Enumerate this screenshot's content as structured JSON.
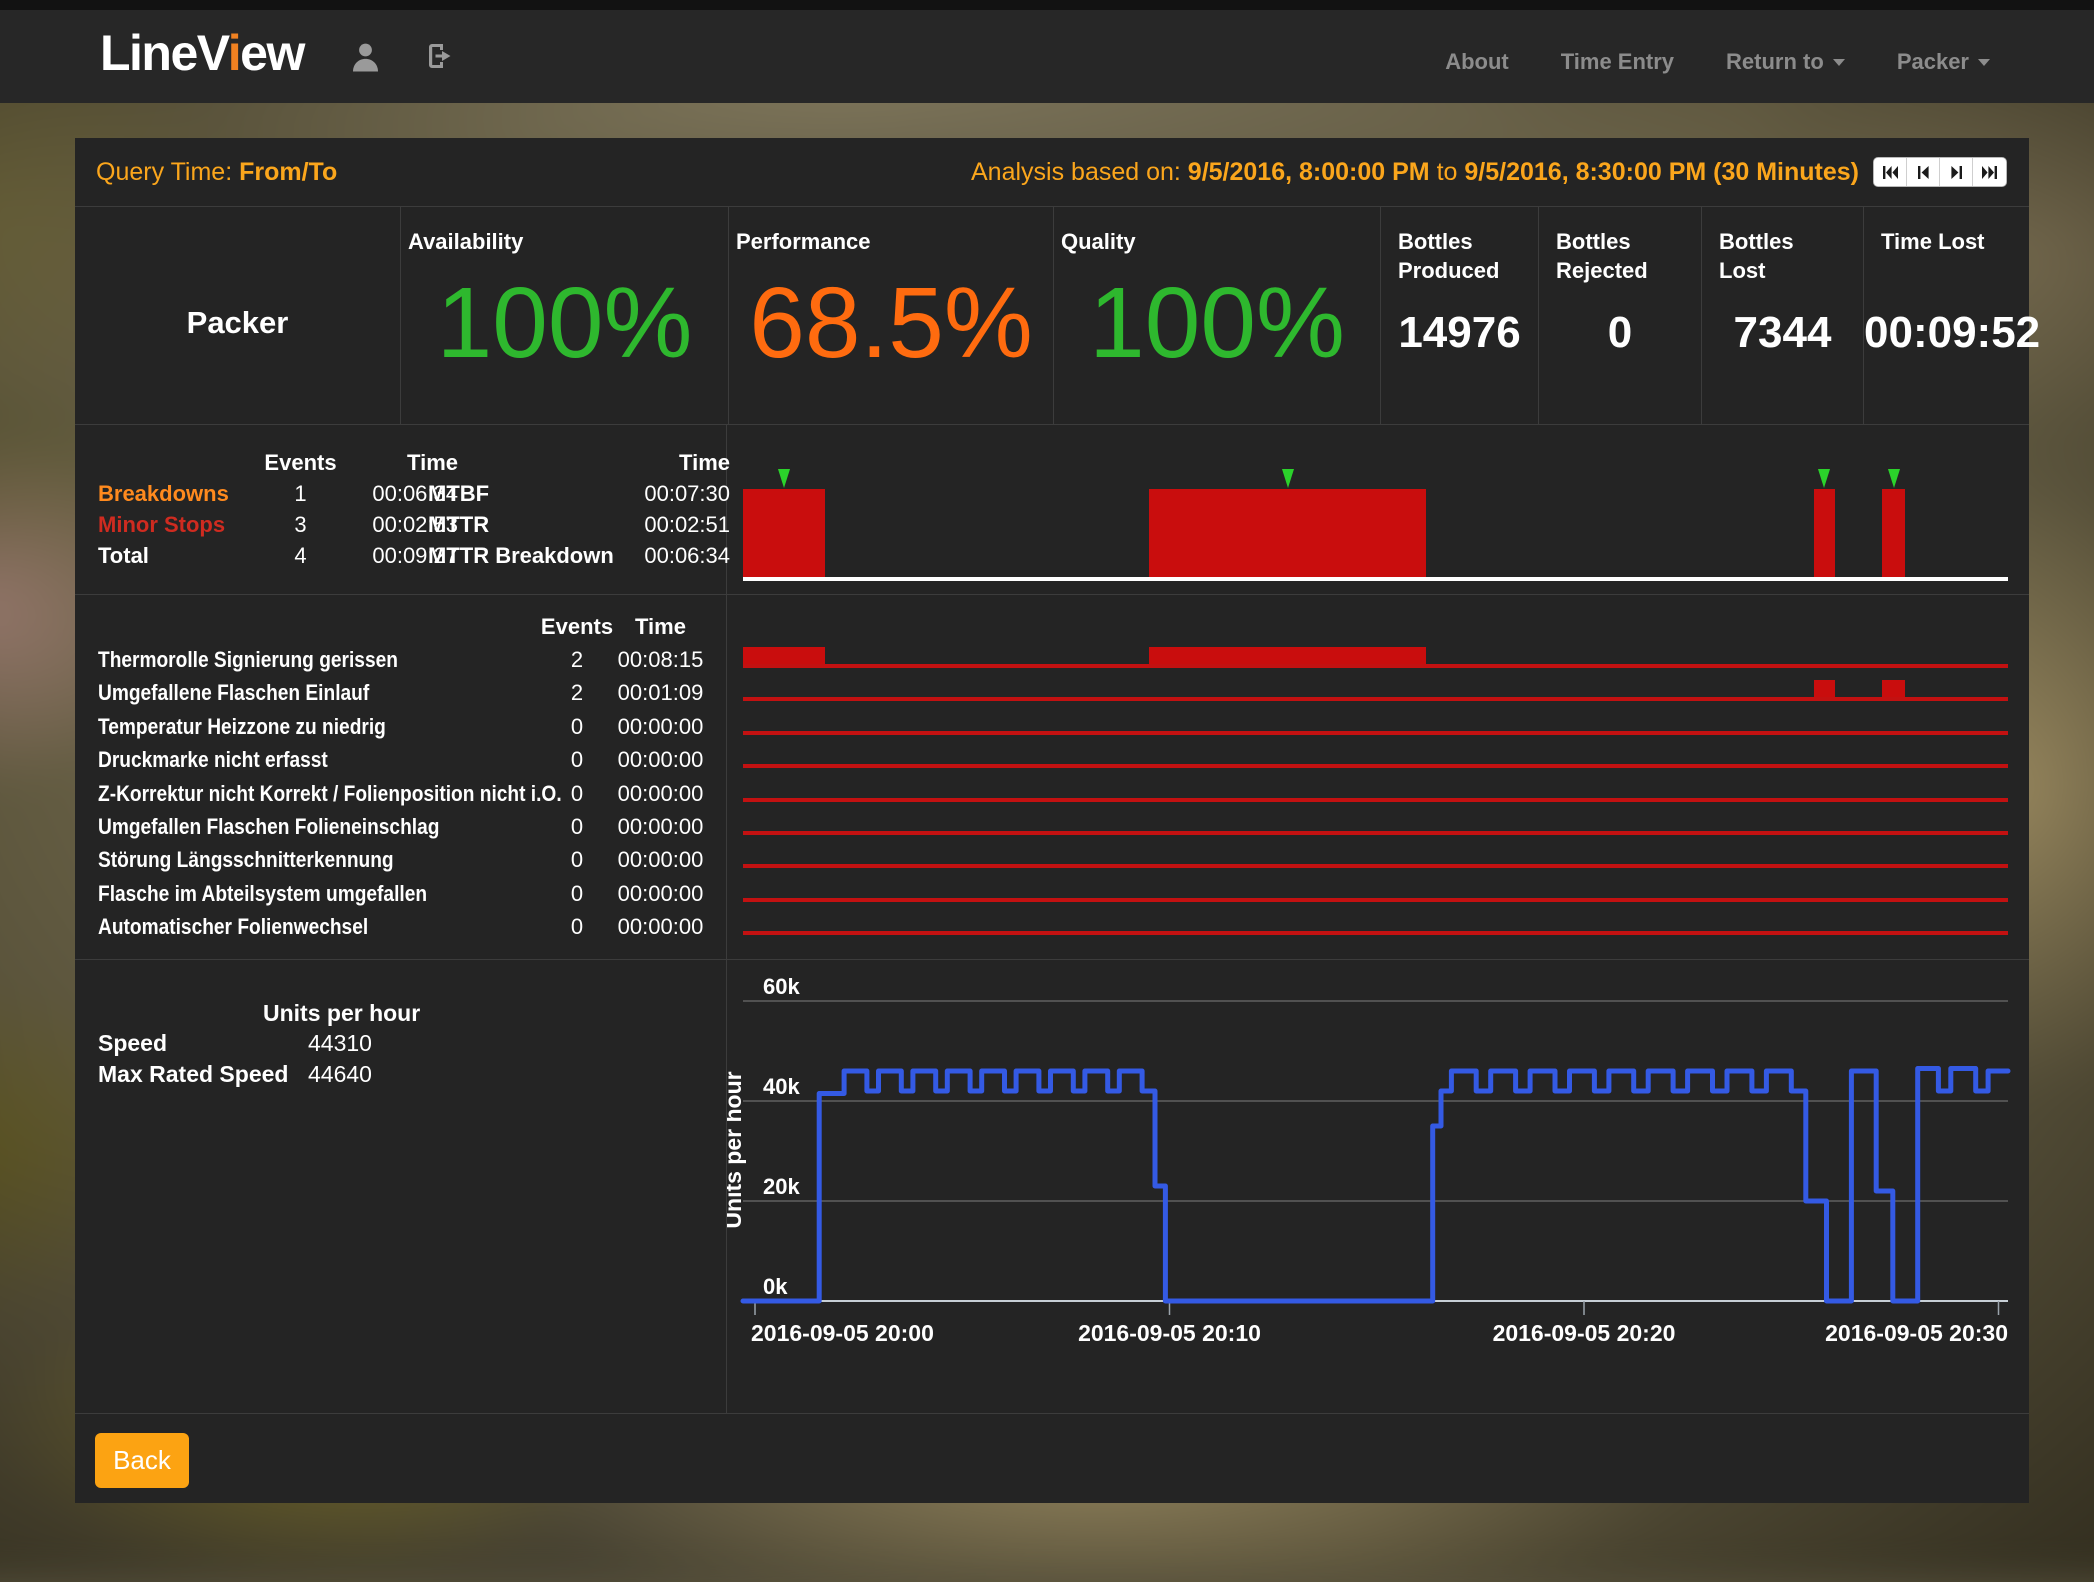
{
  "navbar": {
    "logo": {
      "part1": "LineV",
      "accent": "i",
      "part2": "ew"
    },
    "links": [
      "About",
      "Time Entry",
      "Return to",
      "Packer"
    ]
  },
  "query_header": {
    "label": "Query Time: ",
    "value": "From/To",
    "analysis_prefix": "Analysis based on: ",
    "from": "9/5/2016, 8:00:00 PM",
    "to_word": " to ",
    "to": "9/5/2016, 8:30:00 PM",
    "duration": " (30 Minutes)",
    "vcr_icons": [
      "skip-to-start-icon",
      "step-backward-icon",
      "step-forward-icon",
      "skip-to-end-icon"
    ]
  },
  "kpi": {
    "machine": "Packer",
    "cells": [
      {
        "label": "Availability",
        "value": "100%",
        "color": "#2eb82e"
      },
      {
        "label": "Performance",
        "value": "68.5%",
        "color": "#ff6b0f"
      },
      {
        "label": "Quality",
        "value": "100%",
        "color": "#2eb82e"
      },
      {
        "label": "Bottles Produced",
        "value": "14976"
      },
      {
        "label": "Bottles Rejected",
        "value": "0"
      },
      {
        "label": "Bottles Lost",
        "value": "7344"
      },
      {
        "label": "Time Lost",
        "value": "00:09:52"
      }
    ]
  },
  "breakdown_stats": {
    "events_header": "Events",
    "time_header": "Time",
    "rows": [
      {
        "label": "Breakdowns",
        "events": "1",
        "time": "00:06:34",
        "color": "#ff8a1e"
      },
      {
        "label": "Minor Stops",
        "events": "3",
        "time": "00:02:53",
        "color": "#cf2b20"
      },
      {
        "label": "Total",
        "events": "4",
        "time": "00:09:27",
        "color": "#ffffff"
      }
    ],
    "mttr_table": {
      "time_header": "Time",
      "rows": [
        {
          "label": "MTBF",
          "time": "00:07:30"
        },
        {
          "label": "MTTR",
          "time": "00:02:51"
        },
        {
          "label": "MTTR Breakdown",
          "time": "00:06:34"
        }
      ]
    }
  },
  "events_table": {
    "events_header": "Events",
    "time_header": "Time",
    "rows": [
      {
        "name": "Thermorolle Signierung gerissen",
        "events": "2",
        "time": "00:08:15"
      },
      {
        "name": "Umgefallene Flaschen Einlauf",
        "events": "2",
        "time": "00:01:09"
      },
      {
        "name": "Temperatur Heizzone zu niedrig",
        "events": "0",
        "time": "00:00:00"
      },
      {
        "name": "Druckmarke nicht erfasst",
        "events": "0",
        "time": "00:00:00"
      },
      {
        "name": "Z-Korrektur nicht Korrekt / Folienposition nicht i.O.",
        "events": "0",
        "time": "00:00:00"
      },
      {
        "name": "Umgefallen Flaschen Folieneinschlag",
        "events": "0",
        "time": "00:00:00"
      },
      {
        "name": "Störung Längsschnitterkennung",
        "events": "0",
        "time": "00:00:00"
      },
      {
        "name": "Flasche im Abteilsystem umgefallen",
        "events": "0",
        "time": "00:00:00"
      },
      {
        "name": "Automatischer Folienwechsel",
        "events": "0",
        "time": "00:00:00"
      }
    ]
  },
  "speed": {
    "title": "Units per hour",
    "rows": [
      {
        "label": "Speed",
        "value": "44310"
      },
      {
        "label": "Max Rated Speed",
        "value": "44640"
      }
    ]
  },
  "footer": {
    "back_label": "Back"
  },
  "colors": {
    "accent_orange": "#fba61c",
    "bar_red": "#c90d0d",
    "line_red": "#c31111",
    "marker_green": "#2bd22b",
    "chart_blue": "#345ae4",
    "grid_gray": "#7e7e7e",
    "axis_light": "#c7cfd6"
  },
  "chart_data": [
    {
      "type": "bar",
      "name": "breakdown_timeline",
      "note": "machine stop gantt, minutes after 2016-09-05 20:00",
      "bars": [
        {
          "start": -0.3,
          "end": 1.7
        },
        {
          "start": 9.5,
          "end": 16.2
        },
        {
          "start": 25.55,
          "end": 26.05
        },
        {
          "start": 27.2,
          "end": 27.75
        }
      ],
      "markers": [
        0.7,
        12.85,
        25.8,
        27.47
      ]
    },
    {
      "type": "bar",
      "name": "event_timelines",
      "note": "per-event stop gantt rows, minutes after 20:00",
      "rows": [
        {
          "bars": [
            {
              "start": -0.3,
              "end": 1.7
            },
            {
              "start": 9.5,
              "end": 16.2
            }
          ]
        },
        {
          "bars": [
            {
              "start": 25.55,
              "end": 26.05
            },
            {
              "start": 27.2,
              "end": 27.75
            }
          ]
        },
        {
          "bars": []
        },
        {
          "bars": []
        },
        {
          "bars": []
        },
        {
          "bars": []
        },
        {
          "bars": []
        },
        {
          "bars": []
        },
        {
          "bars": []
        }
      ]
    },
    {
      "type": "line",
      "name": "units_per_hour",
      "ylabel": "Units per hour",
      "ylim": [
        0,
        66000
      ],
      "yticks": [
        {
          "v": 0,
          "label": "0k"
        },
        {
          "v": 20000,
          "label": "20k"
        },
        {
          "v": 40000,
          "label": "40k"
        },
        {
          "v": 60000,
          "label": "60k"
        }
      ],
      "xticks": [
        {
          "t": 0,
          "label": "2016-09-05 20:00"
        },
        {
          "t": 10,
          "label": "2016-09-05 20:10"
        },
        {
          "t": 20,
          "label": "2016-09-05 20:20"
        },
        {
          "t": 30,
          "label": "2016-09-05 20:30"
        }
      ],
      "points_t_v": [
        [
          -0.3,
          0
        ],
        [
          1.55,
          0
        ],
        [
          1.55,
          41500
        ],
        [
          2.15,
          41500
        ],
        [
          2.15,
          46000
        ],
        [
          2.7,
          46000
        ],
        [
          2.7,
          42000
        ],
        [
          2.98,
          42000
        ],
        [
          2.98,
          46000
        ],
        [
          3.53,
          46000
        ],
        [
          3.53,
          42000
        ],
        [
          3.81,
          42000
        ],
        [
          3.81,
          46000
        ],
        [
          4.36,
          46000
        ],
        [
          4.36,
          42000
        ],
        [
          4.64,
          42000
        ],
        [
          4.64,
          46000
        ],
        [
          5.19,
          46000
        ],
        [
          5.19,
          42000
        ],
        [
          5.47,
          42000
        ],
        [
          5.47,
          46000
        ],
        [
          6.02,
          46000
        ],
        [
          6.02,
          42000
        ],
        [
          6.3,
          42000
        ],
        [
          6.3,
          46000
        ],
        [
          6.85,
          46000
        ],
        [
          6.85,
          42000
        ],
        [
          7.13,
          42000
        ],
        [
          7.13,
          46000
        ],
        [
          7.68,
          46000
        ],
        [
          7.68,
          42000
        ],
        [
          7.96,
          42000
        ],
        [
          7.96,
          46000
        ],
        [
          8.51,
          46000
        ],
        [
          8.51,
          42000
        ],
        [
          8.79,
          42000
        ],
        [
          8.79,
          46000
        ],
        [
          9.34,
          46000
        ],
        [
          9.34,
          42000
        ],
        [
          9.65,
          42000
        ],
        [
          9.65,
          23000
        ],
        [
          9.9,
          23000
        ],
        [
          9.9,
          0
        ],
        [
          16.35,
          0
        ],
        [
          16.35,
          35000
        ],
        [
          16.55,
          35000
        ],
        [
          16.55,
          42000
        ],
        [
          16.8,
          42000
        ],
        [
          16.8,
          46000
        ],
        [
          17.4,
          46000
        ],
        [
          17.4,
          42000
        ],
        [
          17.75,
          42000
        ],
        [
          17.75,
          46000
        ],
        [
          18.35,
          46000
        ],
        [
          18.35,
          42000
        ],
        [
          18.7,
          42000
        ],
        [
          18.7,
          46000
        ],
        [
          19.3,
          46000
        ],
        [
          19.3,
          42000
        ],
        [
          19.65,
          42000
        ],
        [
          19.65,
          46000
        ],
        [
          20.25,
          46000
        ],
        [
          20.25,
          42000
        ],
        [
          20.6,
          42000
        ],
        [
          20.6,
          46000
        ],
        [
          21.2,
          46000
        ],
        [
          21.2,
          42000
        ],
        [
          21.55,
          42000
        ],
        [
          21.55,
          46000
        ],
        [
          22.15,
          46000
        ],
        [
          22.15,
          42000
        ],
        [
          22.5,
          42000
        ],
        [
          22.5,
          46000
        ],
        [
          23.1,
          46000
        ],
        [
          23.1,
          42000
        ],
        [
          23.45,
          42000
        ],
        [
          23.45,
          46000
        ],
        [
          24.05,
          46000
        ],
        [
          24.05,
          42000
        ],
        [
          24.4,
          42000
        ],
        [
          24.4,
          46000
        ],
        [
          25.0,
          46000
        ],
        [
          25.0,
          42000
        ],
        [
          25.35,
          42000
        ],
        [
          25.35,
          20000
        ],
        [
          25.85,
          20000
        ],
        [
          25.85,
          0
        ],
        [
          26.45,
          0
        ],
        [
          26.45,
          46000
        ],
        [
          27.05,
          46000
        ],
        [
          27.05,
          22000
        ],
        [
          27.45,
          22000
        ],
        [
          27.45,
          0
        ],
        [
          28.05,
          0
        ],
        [
          28.05,
          46500
        ],
        [
          28.55,
          46500
        ],
        [
          28.55,
          42000
        ],
        [
          28.85,
          42000
        ],
        [
          28.85,
          46500
        ],
        [
          29.45,
          46500
        ],
        [
          29.45,
          42000
        ],
        [
          29.75,
          42000
        ],
        [
          29.75,
          46000
        ],
        [
          30.3,
          46000
        ]
      ]
    }
  ]
}
